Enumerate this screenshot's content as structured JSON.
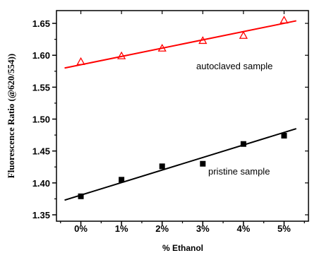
{
  "chart_data": {
    "type": "scatter",
    "title": "",
    "xlabel": "% Ethanol",
    "ylabel": "Fluorescence Ratio (@620/554))",
    "x_ticks": [
      "0%",
      "1%",
      "2%",
      "3%",
      "4%",
      "5%"
    ],
    "xlim": [
      -0.6,
      5.6
    ],
    "ylim": [
      1.34,
      1.67
    ],
    "y_ticks": [
      "1.35",
      "1.40",
      "1.45",
      "1.50",
      "1.55",
      "1.60",
      "1.65"
    ],
    "y_tick_values": [
      1.35,
      1.4,
      1.45,
      1.5,
      1.55,
      1.6,
      1.65
    ],
    "grid": false,
    "series": [
      {
        "label": "autoclaved sample",
        "marker": "open-triangle",
        "color": "#ff0000",
        "x": [
          0,
          1,
          2,
          3,
          4,
          5
        ],
        "y": [
          1.59,
          1.599,
          1.611,
          1.623,
          1.631,
          1.655
        ],
        "fit_line": {
          "x": [
            -0.4,
            5.3
          ],
          "y": [
            1.58,
            1.654
          ]
        }
      },
      {
        "label": "pristine sample",
        "marker": "filled-square",
        "color": "#000000",
        "x": [
          0,
          1,
          2,
          3,
          4,
          5
        ],
        "y": [
          1.379,
          1.405,
          1.426,
          1.43,
          1.461,
          1.474
        ],
        "fit_line": {
          "x": [
            -0.4,
            5.3
          ],
          "y": [
            1.373,
            1.485
          ]
        }
      }
    ]
  }
}
